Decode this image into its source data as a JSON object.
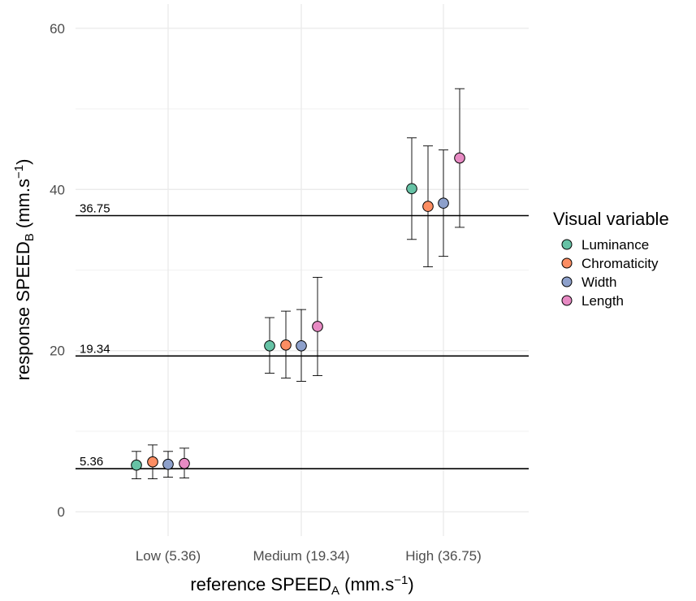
{
  "chart_data": {
    "type": "scatter",
    "xlabel": {
      "main": "reference SPEED",
      "sub": "A",
      "unit_pre": " (mm.s",
      "sup": "−1",
      "unit_post": ")"
    },
    "ylabel": {
      "main": "response SPEED",
      "sub": "B",
      "unit_pre": " (mm.s",
      "sup": "−1",
      "unit_post": ")"
    },
    "categories": [
      "Low (5.36)",
      "Medium (19.34)",
      "High (36.75)"
    ],
    "ylim": [
      -3,
      63
    ],
    "yticks": [
      0,
      20,
      40,
      60
    ],
    "grid": true,
    "reference_lines": [
      {
        "value": 5.36,
        "label": "5.36"
      },
      {
        "value": 19.34,
        "label": "19.34"
      },
      {
        "value": 36.75,
        "label": "36.75"
      }
    ],
    "legend": {
      "title": "Visual variable",
      "placement": "right"
    },
    "series": [
      {
        "name": "Luminance",
        "color": "#66c2a5",
        "values": [
          5.8,
          20.6,
          40.1
        ],
        "err_low": [
          4.1,
          17.2,
          33.8
        ],
        "err_high": [
          7.5,
          24.1,
          46.4
        ]
      },
      {
        "name": "Chromaticity",
        "color": "#fc8d62",
        "values": [
          6.2,
          20.7,
          37.9
        ],
        "err_low": [
          4.1,
          16.6,
          30.4
        ],
        "err_high": [
          8.3,
          24.9,
          45.4
        ]
      },
      {
        "name": "Width",
        "color": "#8da0cb",
        "values": [
          5.9,
          20.6,
          38.3
        ],
        "err_low": [
          4.3,
          16.2,
          31.7
        ],
        "err_high": [
          7.5,
          25.1,
          44.9
        ]
      },
      {
        "name": "Length",
        "color": "#e78ac3",
        "values": [
          6.0,
          23.0,
          43.9
        ],
        "err_low": [
          4.2,
          16.9,
          35.3
        ],
        "err_high": [
          7.9,
          29.1,
          52.5
        ]
      }
    ]
  }
}
